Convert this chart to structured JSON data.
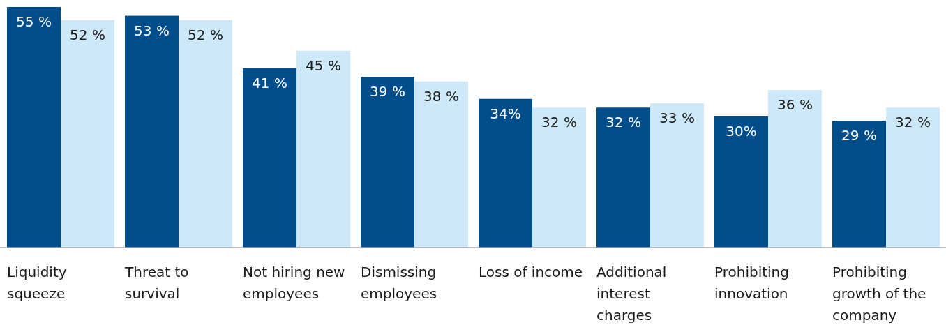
{
  "chart_data": {
    "type": "bar",
    "categories": [
      "Liquidity squeeze",
      "Threat to survival",
      "Not hiring new employees",
      "Dismissing employees",
      "Loss of income",
      "Additional interest charges",
      "Prohibiting innovation",
      "Prohibiting growth of the company"
    ],
    "series": [
      {
        "color": "#004d8c",
        "values": [
          55,
          53,
          41,
          39,
          34,
          32,
          30,
          29
        ],
        "value_labels": [
          "55 %",
          "53 %",
          "41 %",
          "39 %",
          "34%",
          "32 %",
          "30%",
          "29 %"
        ]
      },
      {
        "color": "#cde8f8",
        "values": [
          52,
          52,
          45,
          38,
          32,
          33,
          36,
          32
        ],
        "value_labels": [
          "52 %",
          "52 %",
          "45 %",
          "38 %",
          "32 %",
          "33 %",
          "36 %",
          "32 %"
        ]
      }
    ]
  }
}
